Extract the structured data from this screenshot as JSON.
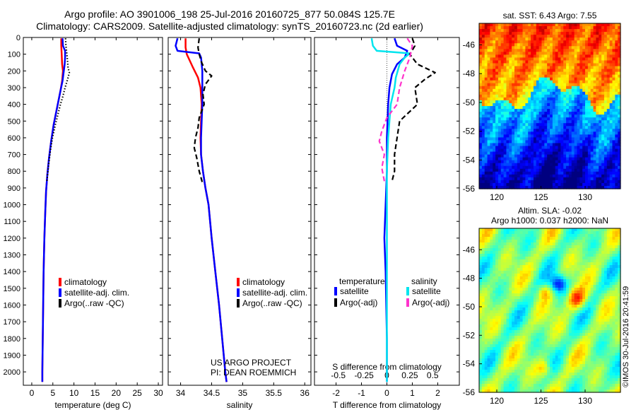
{
  "header": {
    "line1": "Argo profile: AO 3901006_198 25-Jul-2016 20160725_877 50.084S 125.7E",
    "line2": "Climatology: CARS2009. Satellite-adjusted climatology: synTS_20160723.nc (2d earlier)"
  },
  "colors": {
    "climatology": "#ff0000",
    "satellite": "#0000ff",
    "argo": "#000000",
    "salinity_satellite": "#00e5ee",
    "salinity_argo": "#ff33cc"
  },
  "chart_data": [
    {
      "id": "temperature",
      "type": "line",
      "xlabel": "temperature (deg C)",
      "ylabel": "",
      "xlim": [
        -2,
        31
      ],
      "ylim": [
        2080,
        0
      ],
      "xticks": [
        0,
        5,
        10,
        15,
        20,
        25,
        30
      ],
      "yticks": [
        0,
        100,
        200,
        300,
        400,
        500,
        600,
        700,
        800,
        900,
        1000,
        1100,
        1200,
        1300,
        1400,
        1500,
        1600,
        1700,
        1800,
        1900,
        2000
      ],
      "legend": {
        "placement": "lower-center",
        "entries": [
          "climatology",
          "satellite-adj. clim.",
          "Argo(..raw -QC)"
        ]
      },
      "series": [
        {
          "name": "climatology",
          "style": "solid",
          "color": "climatology",
          "points": [
            [
              7.0,
              5
            ],
            [
              7.0,
              50
            ],
            [
              7.1,
              100
            ],
            [
              7.2,
              160
            ],
            [
              7.4,
              200
            ],
            [
              7.2,
              260
            ],
            [
              6.8,
              320
            ],
            [
              6.0,
              420
            ],
            [
              5.2,
              520
            ],
            [
              4.6,
              620
            ],
            [
              4.1,
              720
            ],
            [
              3.7,
              820
            ],
            [
              3.4,
              920
            ],
            [
              3.2,
              1050
            ],
            [
              3.0,
              1200
            ],
            [
              2.8,
              1400
            ],
            [
              2.7,
              1600
            ],
            [
              2.6,
              1800
            ],
            [
              2.5,
              2000
            ],
            [
              2.5,
              2060
            ]
          ]
        },
        {
          "name": "satellite-adj. clim.",
          "style": "solid",
          "color": "satellite",
          "points": [
            [
              7.3,
              5
            ],
            [
              7.4,
              50
            ],
            [
              7.9,
              80
            ],
            [
              7.9,
              120
            ],
            [
              7.8,
              160
            ],
            [
              7.6,
              200
            ],
            [
              7.3,
              260
            ],
            [
              6.8,
              320
            ],
            [
              6.0,
              420
            ],
            [
              5.2,
              520
            ],
            [
              4.6,
              620
            ],
            [
              4.1,
              720
            ],
            [
              3.7,
              820
            ],
            [
              3.4,
              920
            ],
            [
              3.2,
              1050
            ],
            [
              3.0,
              1200
            ],
            [
              2.8,
              1400
            ],
            [
              2.7,
              1600
            ],
            [
              2.6,
              1800
            ],
            [
              2.5,
              2000
            ],
            [
              2.5,
              2060
            ]
          ]
        },
        {
          "name": "Argo(..raw -QC)",
          "style": "dotted",
          "color": "argo",
          "points": [
            [
              8.0,
              5
            ],
            [
              8.1,
              50
            ],
            [
              8.4,
              120
            ],
            [
              8.6,
              180
            ],
            [
              8.9,
              210
            ],
            [
              8.5,
              250
            ],
            [
              7.9,
              300
            ],
            [
              7.4,
              350
            ],
            [
              6.8,
              400
            ],
            [
              6.2,
              460
            ],
            [
              5.6,
              520
            ],
            [
              4.9,
              600
            ],
            [
              4.4,
              680
            ],
            [
              4.0,
              760
            ],
            [
              3.6,
              860
            ]
          ]
        }
      ]
    },
    {
      "id": "salinity",
      "type": "line",
      "xlabel": "salinity",
      "ylabel": "",
      "xlim": [
        33.8,
        36.1
      ],
      "ylim": [
        2080,
        0
      ],
      "xticks": [
        34,
        34.5,
        35,
        35.5,
        36
      ],
      "legend": {
        "placement": "lower-center",
        "entries": [
          "climatology",
          "satellite-adj. clim.",
          "Argo(..raw -QC)"
        ]
      },
      "annotation": [
        "US ARGO PROJECT",
        "PI: DEAN ROEMMICH"
      ],
      "series": [
        {
          "name": "climatology",
          "style": "solid",
          "color": "climatology",
          "points": [
            [
              34.08,
              5
            ],
            [
              34.08,
              60
            ],
            [
              34.1,
              100
            ],
            [
              34.15,
              140
            ],
            [
              34.2,
              180
            ],
            [
              34.28,
              240
            ],
            [
              34.32,
              300
            ],
            [
              34.34,
              400
            ],
            [
              34.33,
              500
            ],
            [
              34.32,
              600
            ],
            [
              34.33,
              700
            ],
            [
              34.36,
              800
            ],
            [
              34.4,
              900
            ],
            [
              34.45,
              1000
            ],
            [
              34.5,
              1200
            ],
            [
              34.56,
              1400
            ],
            [
              34.62,
              1600
            ],
            [
              34.67,
              1800
            ],
            [
              34.72,
              2000
            ],
            [
              34.74,
              2060
            ]
          ]
        },
        {
          "name": "satellite-adj. clim.",
          "style": "solid",
          "color": "satellite",
          "points": [
            [
              33.95,
              5
            ],
            [
              33.92,
              50
            ],
            [
              33.95,
              80
            ],
            [
              34.3,
              95
            ],
            [
              34.33,
              120
            ],
            [
              34.35,
              200
            ],
            [
              34.35,
              300
            ],
            [
              34.35,
              400
            ],
            [
              34.34,
              500
            ],
            [
              34.33,
              600
            ],
            [
              34.33,
              700
            ],
            [
              34.36,
              800
            ],
            [
              34.4,
              900
            ],
            [
              34.45,
              1000
            ],
            [
              34.5,
              1200
            ],
            [
              34.56,
              1400
            ],
            [
              34.62,
              1600
            ],
            [
              34.67,
              1800
            ],
            [
              34.72,
              2000
            ],
            [
              34.74,
              2060
            ]
          ]
        },
        {
          "name": "Argo(..raw -QC)",
          "style": "dashed",
          "color": "argo",
          "points": [
            [
              34.3,
              5
            ],
            [
              34.28,
              60
            ],
            [
              34.3,
              100
            ],
            [
              34.34,
              150
            ],
            [
              34.4,
              200
            ],
            [
              34.5,
              230
            ],
            [
              34.4,
              280
            ],
            [
              34.36,
              340
            ],
            [
              34.38,
              400
            ],
            [
              34.3,
              480
            ],
            [
              34.28,
              540
            ],
            [
              34.24,
              600
            ],
            [
              34.22,
              660
            ],
            [
              34.26,
              720
            ],
            [
              34.3,
              800
            ],
            [
              34.36,
              880
            ]
          ]
        }
      ]
    },
    {
      "id": "difference",
      "type": "line",
      "xlabel": "T difference from climatology",
      "xlabel2": "S difference from climatology",
      "ylabel": "",
      "xlim": [
        -2.85,
        2.85
      ],
      "ylim": [
        2080,
        0
      ],
      "xticks": [
        -2,
        -1,
        0,
        1,
        2
      ],
      "xticks_salinity": [
        "-0.5",
        "-0.25",
        "0",
        "0.25",
        "0.5"
      ],
      "legend": {
        "placement": "lower-center",
        "headers": [
          "temperature",
          "salinity"
        ],
        "entries": [
          "satellite",
          "Argo(-adj)",
          "satellite",
          "Argo(-adj)"
        ]
      },
      "series": [
        {
          "name": "satellite",
          "group": "temperature",
          "style": "solid",
          "color": "satellite",
          "points": [
            [
              0.3,
              5
            ],
            [
              0.4,
              50
            ],
            [
              0.8,
              80
            ],
            [
              0.7,
              120
            ],
            [
              0.4,
              160
            ],
            [
              0.2,
              220
            ],
            [
              0.1,
              300
            ],
            [
              0.05,
              400
            ],
            [
              0,
              600
            ],
            [
              0,
              800
            ],
            [
              -0.05,
              1000
            ],
            [
              -0.1,
              1200
            ],
            [
              -0.05,
              1400
            ],
            [
              0,
              1800
            ],
            [
              0,
              2060
            ]
          ]
        },
        {
          "name": "satellite",
          "group": "salinity",
          "style": "solid",
          "color": "salinity_satellite",
          "points": [
            [
              -0.6,
              5
            ],
            [
              -0.55,
              50
            ],
            [
              -0.4,
              80
            ],
            [
              0.9,
              95
            ],
            [
              0.7,
              120
            ],
            [
              0.5,
              160
            ],
            [
              0.35,
              240
            ],
            [
              0.3,
              300
            ],
            [
              0.15,
              400
            ],
            [
              0.1,
              500
            ],
            [
              0.05,
              600
            ],
            [
              0,
              800
            ],
            [
              0,
              1000
            ],
            [
              0,
              1500
            ],
            [
              0,
              2060
            ]
          ]
        },
        {
          "name": "Argo(-adj)",
          "group": "temperature",
          "style": "dashed",
          "color": "argo",
          "points": [
            [
              1.0,
              5
            ],
            [
              1.1,
              50
            ],
            [
              0.9,
              100
            ],
            [
              1.2,
              160
            ],
            [
              1.9,
              210
            ],
            [
              1.5,
              250
            ],
            [
              1.1,
              300
            ],
            [
              1.2,
              400
            ],
            [
              0.5,
              500
            ],
            [
              0.4,
              600
            ],
            [
              0.3,
              700
            ],
            [
              0.3,
              800
            ],
            [
              0.2,
              860
            ]
          ]
        },
        {
          "name": "Argo(-adj)",
          "group": "salinity",
          "style": "dashed",
          "color": "salinity_argo",
          "points": [
            [
              0.8,
              5
            ],
            [
              1.0,
              50
            ],
            [
              0.9,
              120
            ],
            [
              0.7,
              200
            ],
            [
              0.5,
              300
            ],
            [
              0.4,
              400
            ],
            [
              0,
              480
            ],
            [
              -0.2,
              560
            ],
            [
              -0.3,
              620
            ],
            [
              -0.1,
              700
            ],
            [
              -0.2,
              780
            ],
            [
              -0.1,
              860
            ]
          ]
        }
      ]
    }
  ],
  "maps": [
    {
      "id": "sst",
      "title": "sat. SST: 6.43 Argo: 7.55",
      "type": "heatmap",
      "xticks": [
        "120",
        "125",
        "130"
      ],
      "yticks": [
        "-46",
        "-48",
        "-50",
        "-52",
        "-54",
        "-56"
      ],
      "xlim": [
        118,
        134
      ],
      "ylim": [
        -56,
        -44.5
      ]
    },
    {
      "id": "sla",
      "title_line1": "Altim. SLA: -0.02",
      "title_line2": "Argo h1000: 0.037 h2000: NaN",
      "type": "heatmap",
      "xticks": [
        "120",
        "125",
        "130"
      ],
      "yticks": [
        "-46",
        "-48",
        "-50",
        "-52",
        "-54",
        "-56"
      ],
      "xlim": [
        118,
        134
      ],
      "ylim": [
        -56,
        -44.5
      ]
    }
  ],
  "credit": "©IMOS 30-Jul-2016 20:41:59"
}
